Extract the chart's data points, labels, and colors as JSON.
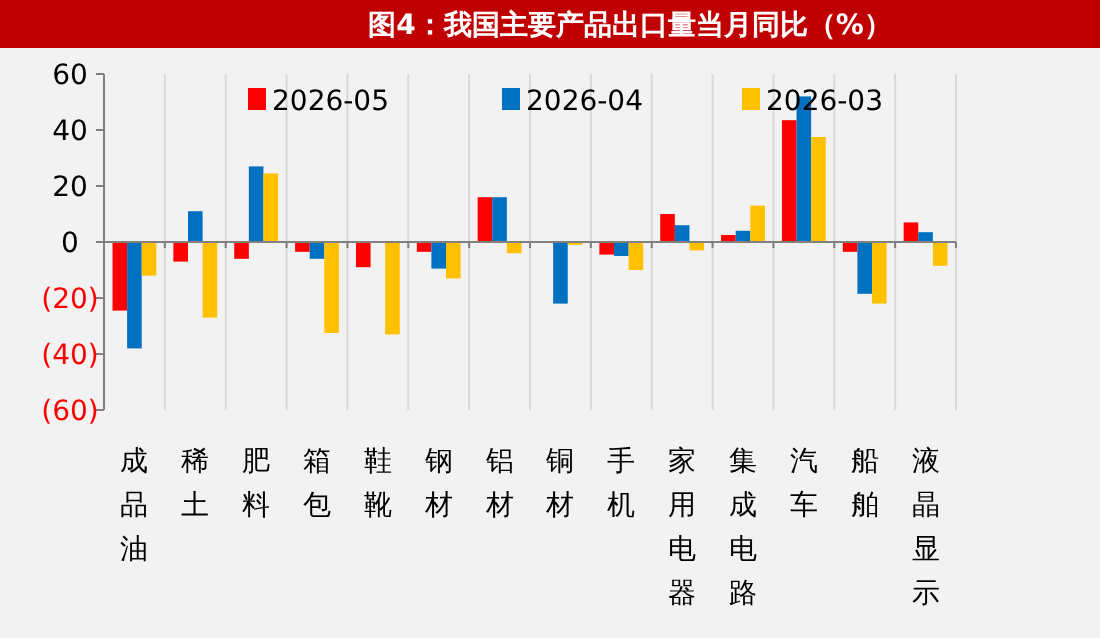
{
  "chart_data": {
    "type": "bar",
    "title": "图4：我国主要产品出口量当月同比（%）",
    "categories": [
      "成品油",
      "稀土",
      "肥料",
      "箱包",
      "鞋靴",
      "钢材",
      "铝材",
      "铜材",
      "手机",
      "家用电器",
      "集成电路",
      "汽车",
      "船舶",
      "液晶显示"
    ],
    "series": [
      {
        "name": "2026-05",
        "color": "#ff0000",
        "values": [
          -24.5,
          -7,
          -6,
          -3.5,
          -9,
          -3.5,
          16,
          0,
          -4.5,
          10,
          2.5,
          43.5,
          -3.5,
          7
        ]
      },
      {
        "name": "2026-04",
        "color": "#0070c0",
        "values": [
          -38,
          11,
          27,
          -6,
          0,
          -9.5,
          16,
          -22,
          -5,
          6,
          4,
          52,
          -18.5,
          3.5
        ]
      },
      {
        "name": "2026-03",
        "color": "#ffc000",
        "values": [
          -12,
          -27,
          24.5,
          -32.5,
          -33,
          -13,
          -4,
          -1,
          -10,
          -3,
          13,
          37.5,
          -22,
          -8.5
        ]
      }
    ],
    "ylim": [
      -60,
      60
    ],
    "yticks": [
      {
        "value": -60,
        "label": "(60)"
      },
      {
        "value": -40,
        "label": "(40)"
      },
      {
        "value": -20,
        "label": "(20)"
      },
      0,
      20,
      40,
      60
    ],
    "grid": "x",
    "legend": "top"
  }
}
